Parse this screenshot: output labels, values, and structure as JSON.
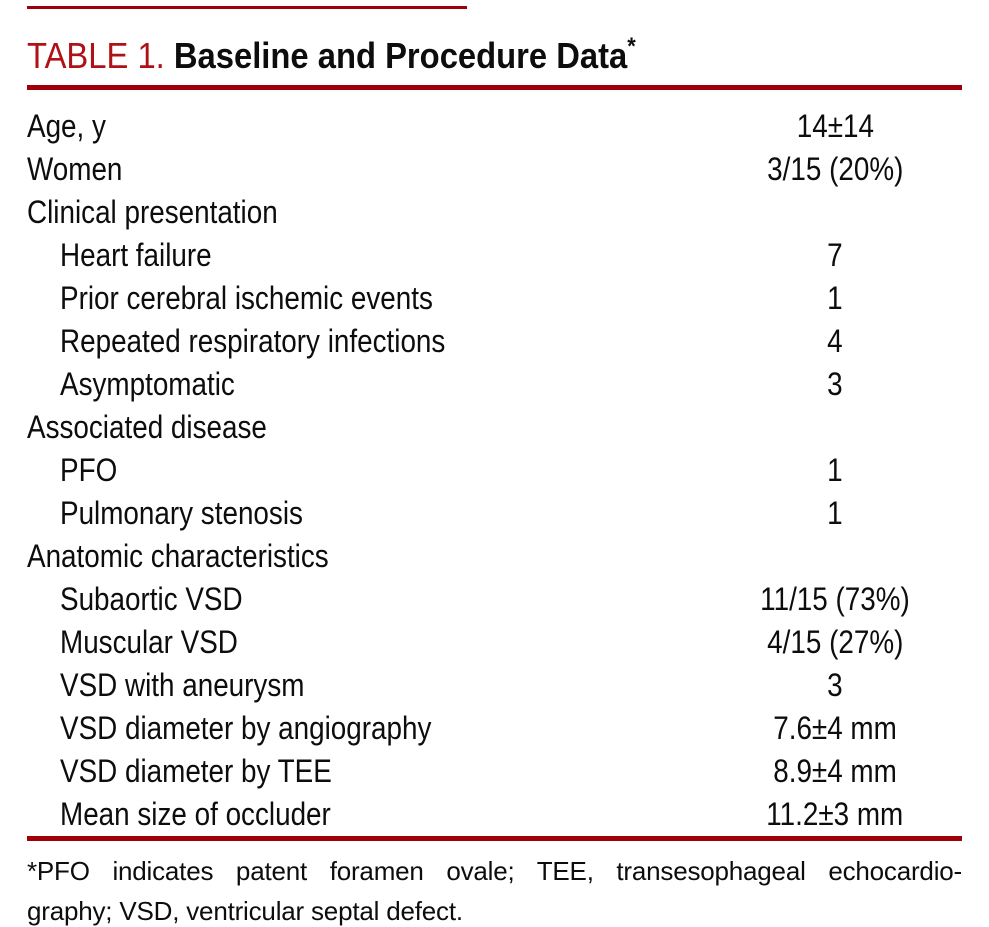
{
  "colors": {
    "rule_red": "#9e0009",
    "title_red": "#b01117",
    "ink": "#0d0d0d"
  },
  "title": {
    "label": "TABLE 1.",
    "text": " Baseline and Procedure Data",
    "asterisk": "*"
  },
  "table": {
    "rows": [
      {
        "label": "Age, y",
        "value": "14±14",
        "indent": false
      },
      {
        "label": "Women",
        "value": "3/15 (20%)",
        "indent": false
      },
      {
        "label": "Clinical presentation",
        "value": "",
        "indent": false
      },
      {
        "label": "Heart failure",
        "value": "7",
        "indent": true
      },
      {
        "label": "Prior cerebral ischemic events",
        "value": "1",
        "indent": true
      },
      {
        "label": "Repeated respiratory infections",
        "value": "4",
        "indent": true
      },
      {
        "label": "Asymptomatic",
        "value": "3",
        "indent": true
      },
      {
        "label": "Associated disease",
        "value": "",
        "indent": false
      },
      {
        "label": "PFO",
        "value": "1",
        "indent": true
      },
      {
        "label": "Pulmonary stenosis",
        "value": "1",
        "indent": true
      },
      {
        "label": "Anatomic characteristics",
        "value": "",
        "indent": false
      },
      {
        "label": "Subaortic VSD",
        "value": "11/15 (73%)",
        "indent": true
      },
      {
        "label": "Muscular VSD",
        "value": "4/15 (27%)",
        "indent": true
      },
      {
        "label": "VSD with aneurysm",
        "value": "3",
        "indent": true
      },
      {
        "label": "VSD diameter by angiography",
        "value": "7.6±4 mm",
        "indent": true
      },
      {
        "label": "VSD diameter by TEE",
        "value": "8.9±4 mm",
        "indent": true
      },
      {
        "label": "Mean size of occluder",
        "value": "11.2±3 mm",
        "indent": true
      }
    ]
  },
  "footnote": {
    "line1": "*PFO indicates patent foramen ovale; TEE, transesophageal echocardio-",
    "line2": "graphy; VSD, ventricular septal defect."
  }
}
